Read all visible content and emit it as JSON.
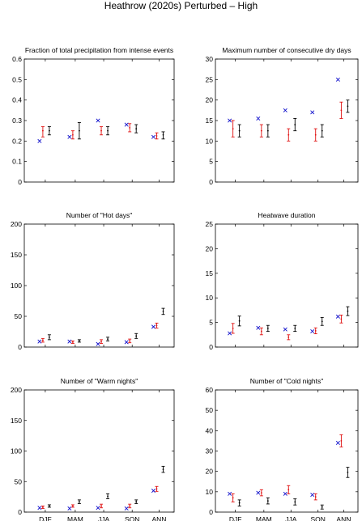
{
  "figure_title": "Heathrow (2020s) Perturbed – High",
  "colors": {
    "observed": "#1010cc",
    "red_series": "#e01010",
    "black_series": "#000000"
  },
  "chart_data": [
    {
      "type": "scatter",
      "title": "Fraction of total precipitation from intense events",
      "categories": [
        "DJF",
        "MAM",
        "JJA",
        "SON",
        "ANN"
      ],
      "ylim": [
        0,
        0.6
      ],
      "yticks": [
        "0",
        "0.1",
        "0.2",
        "0.3",
        "0.4",
        "0.5",
        "0.6"
      ],
      "show_xticklabels": false,
      "series": [
        {
          "marker": "x",
          "points": [
            0.2,
            0.22,
            0.3,
            0.28,
            0.22
          ]
        },
        {
          "marker": "errorbar",
          "points": [
            {
              "mid": 0.25,
              "low": 0.22,
              "high": 0.27
            },
            {
              "mid": 0.23,
              "low": 0.21,
              "high": 0.25
            },
            {
              "mid": 0.25,
              "low": 0.23,
              "high": 0.27
            },
            {
              "mid": 0.265,
              "low": 0.245,
              "high": 0.285
            },
            {
              "mid": 0.225,
              "low": 0.21,
              "high": 0.24
            }
          ]
        },
        {
          "marker": "errorbar",
          "points": [
            {
              "mid": 0.25,
              "low": 0.23,
              "high": 0.27
            },
            {
              "mid": 0.25,
              "low": 0.21,
              "high": 0.29
            },
            {
              "mid": 0.25,
              "low": 0.23,
              "high": 0.27
            },
            {
              "mid": 0.26,
              "low": 0.24,
              "high": 0.28
            },
            {
              "mid": 0.23,
              "low": 0.21,
              "high": 0.245
            }
          ]
        }
      ]
    },
    {
      "type": "scatter",
      "title": "Maximum number of consecutive dry days",
      "categories": [
        "DJF",
        "MAM",
        "JJA",
        "SON",
        "ANN"
      ],
      "ylim": [
        0,
        30
      ],
      "yticks": [
        "0",
        "5",
        "10",
        "15",
        "20",
        "25",
        "30"
      ],
      "show_xticklabels": false,
      "series": [
        {
          "marker": "x",
          "points": [
            15,
            15.5,
            17.5,
            17,
            25
          ]
        },
        {
          "marker": "errorbar",
          "points": [
            {
              "mid": 13,
              "low": 11,
              "high": 15
            },
            {
              "mid": 12.5,
              "low": 11,
              "high": 14
            },
            {
              "mid": 11.5,
              "low": 10,
              "high": 13
            },
            {
              "mid": 11.5,
              "low": 10,
              "high": 13
            },
            {
              "mid": 17.5,
              "low": 15.5,
              "high": 19.5
            }
          ]
        },
        {
          "marker": "errorbar",
          "points": [
            {
              "mid": 12.5,
              "low": 11,
              "high": 14
            },
            {
              "mid": 12.5,
              "low": 11,
              "high": 14
            },
            {
              "mid": 14,
              "low": 12.5,
              "high": 15.5
            },
            {
              "mid": 12.5,
              "low": 11,
              "high": 14
            },
            {
              "mid": 18.5,
              "low": 17,
              "high": 20
            }
          ]
        }
      ]
    },
    {
      "type": "scatter",
      "title": "Number of \"Hot days\"",
      "categories": [
        "DJF",
        "MAM",
        "JJA",
        "SON",
        "ANN"
      ],
      "ylim": [
        0,
        200
      ],
      "yticks": [
        "0",
        "50",
        "100",
        "150",
        "200"
      ],
      "show_xticklabels": false,
      "series": [
        {
          "marker": "x",
          "points": [
            9,
            9,
            5,
            8,
            33
          ]
        },
        {
          "marker": "errorbar",
          "points": [
            {
              "mid": 11,
              "low": 8,
              "high": 14
            },
            {
              "mid": 8,
              "low": 6,
              "high": 10
            },
            {
              "mid": 9,
              "low": 6,
              "high": 12
            },
            {
              "mid": 10,
              "low": 7,
              "high": 13
            },
            {
              "mid": 35,
              "low": 31,
              "high": 39
            }
          ]
        },
        {
          "marker": "errorbar",
          "points": [
            {
              "mid": 16,
              "low": 12,
              "high": 20
            },
            {
              "mid": 10,
              "low": 8,
              "high": 12
            },
            {
              "mid": 13,
              "low": 10,
              "high": 16
            },
            {
              "mid": 18,
              "low": 14,
              "high": 22
            },
            {
              "mid": 58,
              "low": 53,
              "high": 63
            }
          ]
        }
      ]
    },
    {
      "type": "scatter",
      "title": "Heatwave duration",
      "categories": [
        "DJF",
        "MAM",
        "JJA",
        "SON",
        "ANN"
      ],
      "ylim": [
        0,
        25
      ],
      "yticks": [
        "0",
        "5",
        "10",
        "15",
        "20",
        "25"
      ],
      "show_xticklabels": false,
      "series": [
        {
          "marker": "x",
          "points": [
            2.8,
            3.9,
            3.6,
            3.2,
            6.2
          ]
        },
        {
          "marker": "errorbar",
          "points": [
            {
              "mid": 3.8,
              "low": 2.8,
              "high": 4.8
            },
            {
              "mid": 3.2,
              "low": 2.5,
              "high": 3.9
            },
            {
              "mid": 2.0,
              "low": 1.5,
              "high": 2.5
            },
            {
              "mid": 3.3,
              "low": 2.7,
              "high": 3.9
            },
            {
              "mid": 5.7,
              "low": 4.9,
              "high": 6.5
            }
          ]
        },
        {
          "marker": "errorbar",
          "points": [
            {
              "mid": 5.3,
              "low": 4.3,
              "high": 6.3
            },
            {
              "mid": 3.8,
              "low": 3.2,
              "high": 4.4
            },
            {
              "mid": 3.8,
              "low": 3.2,
              "high": 4.4
            },
            {
              "mid": 5.2,
              "low": 4.4,
              "high": 6.0
            },
            {
              "mid": 7.3,
              "low": 6.4,
              "high": 8.2
            }
          ]
        }
      ]
    },
    {
      "type": "scatter",
      "title": "Number of \"Warm nights\"",
      "categories": [
        "DJF",
        "MAM",
        "JJA",
        "SON",
        "ANN"
      ],
      "ylim": [
        0,
        200
      ],
      "yticks": [
        "0",
        "50",
        "100",
        "150",
        "200"
      ],
      "show_xticklabels": true,
      "series": [
        {
          "marker": "x",
          "points": [
            7,
            6,
            7,
            6,
            35
          ]
        },
        {
          "marker": "errorbar",
          "points": [
            {
              "mid": 8,
              "low": 6,
              "high": 10
            },
            {
              "mid": 10,
              "low": 8,
              "high": 12
            },
            {
              "mid": 10,
              "low": 7,
              "high": 13
            },
            {
              "mid": 10,
              "low": 7,
              "high": 13
            },
            {
              "mid": 38,
              "low": 34,
              "high": 42
            }
          ]
        },
        {
          "marker": "errorbar",
          "points": [
            {
              "mid": 10,
              "low": 8,
              "high": 12
            },
            {
              "mid": 17,
              "low": 14,
              "high": 20
            },
            {
              "mid": 26,
              "low": 22,
              "high": 30
            },
            {
              "mid": 17,
              "low": 14,
              "high": 20
            },
            {
              "mid": 70,
              "low": 65,
              "high": 75
            }
          ]
        }
      ]
    },
    {
      "type": "scatter",
      "title": "Number of \"Cold nights\"",
      "categories": [
        "DJF",
        "MAM",
        "JJA",
        "SON",
        "ANN"
      ],
      "ylim": [
        0,
        60
      ],
      "yticks": [
        "0",
        "10",
        "20",
        "30",
        "40",
        "50",
        "60"
      ],
      "show_xticklabels": true,
      "series": [
        {
          "marker": "x",
          "points": [
            9,
            9.5,
            9,
            8.5,
            34
          ]
        },
        {
          "marker": "errorbar",
          "points": [
            {
              "mid": 7,
              "low": 5,
              "high": 9
            },
            {
              "mid": 9.5,
              "low": 8,
              "high": 11
            },
            {
              "mid": 11,
              "low": 9,
              "high": 13
            },
            {
              "mid": 7.5,
              "low": 6,
              "high": 9
            },
            {
              "mid": 35,
              "low": 32,
              "high": 38
            }
          ]
        },
        {
          "marker": "errorbar",
          "points": [
            {
              "mid": 4.5,
              "low": 3,
              "high": 6
            },
            {
              "mid": 5.5,
              "low": 4,
              "high": 7
            },
            {
              "mid": 5,
              "low": 3.5,
              "high": 6.5
            },
            {
              "mid": 2.5,
              "low": 1.5,
              "high": 3.5
            },
            {
              "mid": 19.5,
              "low": 17,
              "high": 22
            }
          ]
        }
      ]
    }
  ]
}
